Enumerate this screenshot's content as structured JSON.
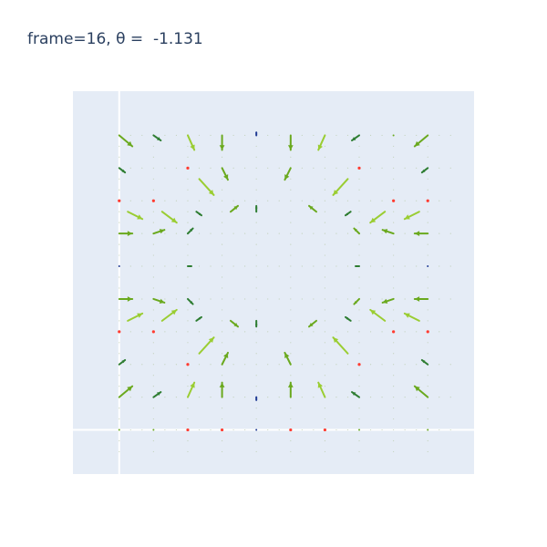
{
  "title": {
    "frame_label": "frame=16, θ =  -1.131"
  },
  "colors": {
    "plot_bg": "#e5ecf6",
    "grid": "#ffffff",
    "title_text": "#2a3f5f",
    "arrow_light": "#9acd32",
    "arrow_mid": "#6aa91e",
    "arrow_dark": "#2e7d32",
    "dot_red": "#ff3b30",
    "dot_faint": "#b7c9a6"
  },
  "chart_data": {
    "type": "quiver",
    "title": "frame=16, θ =  -1.131",
    "frame": 16,
    "theta": -1.131,
    "xlabel": "",
    "ylabel": "",
    "xlim": [
      -0.15,
      1.15
    ],
    "ylim": [
      -0.15,
      1.15
    ],
    "grid": true,
    "zero_lines": true,
    "legend": "none",
    "grid_x": [
      0.0,
      0.1111,
      0.2222,
      0.3333,
      0.4444,
      0.5556,
      0.6667,
      0.7778,
      0.8889,
      1.0
    ],
    "grid_y": [
      0.0,
      0.1111,
      0.2222,
      0.3333,
      0.4444,
      0.5556,
      0.6667,
      0.7778,
      0.8889,
      1.0
    ],
    "arrows": [
      {
        "x": 0.0,
        "y": 1.0,
        "u": 0.9,
        "v": -0.75,
        "s": "mid"
      },
      {
        "x": 0.1111,
        "y": 1.0,
        "u": 0.5,
        "v": -0.35,
        "s": "dark"
      },
      {
        "x": 0.2222,
        "y": 1.0,
        "u": 0.45,
        "v": -1.0,
        "s": "light"
      },
      {
        "x": 0.3333,
        "y": 1.0,
        "u": 0.0,
        "v": -1.0,
        "s": "mid"
      },
      {
        "x": 0.4444,
        "y": 1.0,
        "u": 0.0,
        "v": 0.2,
        "s": "navy"
      },
      {
        "x": 0.5556,
        "y": 1.0,
        "u": 0.0,
        "v": -1.0,
        "s": "mid"
      },
      {
        "x": 0.6667,
        "y": 1.0,
        "u": -0.45,
        "v": -1.0,
        "s": "light"
      },
      {
        "x": 0.7778,
        "y": 1.0,
        "u": -0.5,
        "v": -0.35,
        "s": "dark"
      },
      {
        "x": 0.8889,
        "y": 1.0,
        "u": 0.0,
        "v": 0.0,
        "s": "dot"
      },
      {
        "x": 1.0,
        "y": 1.0,
        "u": -0.9,
        "v": -0.75,
        "s": "mid"
      },
      {
        "x": 0.0,
        "y": 0.8889,
        "u": 0.4,
        "v": -0.3,
        "s": "dark"
      },
      {
        "x": 0.2222,
        "y": 0.8889,
        "u": 0.0,
        "v": 0.0,
        "s": "red"
      },
      {
        "x": 0.2593,
        "y": 0.8519,
        "u": 1.0,
        "v": -1.1,
        "s": "light"
      },
      {
        "x": 0.3333,
        "y": 0.8889,
        "u": 0.4,
        "v": -0.8,
        "s": "mid"
      },
      {
        "x": 0.5556,
        "y": 0.8889,
        "u": -0.4,
        "v": -0.8,
        "s": "mid"
      },
      {
        "x": 0.7407,
        "y": 0.8519,
        "u": -1.0,
        "v": -1.1,
        "s": "light"
      },
      {
        "x": 0.7778,
        "y": 0.8889,
        "u": 0.0,
        "v": 0.0,
        "s": "red"
      },
      {
        "x": 1.0,
        "y": 0.8889,
        "u": -0.4,
        "v": -0.3,
        "s": "dark"
      },
      {
        "x": 0.0,
        "y": 0.7778,
        "u": 0.0,
        "v": 0.0,
        "s": "red"
      },
      {
        "x": 0.1111,
        "y": 0.7778,
        "u": 0.0,
        "v": 0.0,
        "s": "red"
      },
      {
        "x": 0.0278,
        "y": 0.7407,
        "u": 1.0,
        "v": -0.5,
        "s": "light"
      },
      {
        "x": 0.1389,
        "y": 0.7407,
        "u": 1.0,
        "v": -0.75,
        "s": "light"
      },
      {
        "x": 0.25,
        "y": 0.7407,
        "u": 0.35,
        "v": -0.25,
        "s": "dark"
      },
      {
        "x": 0.3611,
        "y": 0.7407,
        "u": 0.5,
        "v": 0.4,
        "s": "mid"
      },
      {
        "x": 0.4444,
        "y": 0.7407,
        "u": 0.0,
        "v": 0.4,
        "s": "dark"
      },
      {
        "x": 0.6389,
        "y": 0.7407,
        "u": -0.5,
        "v": 0.4,
        "s": "mid"
      },
      {
        "x": 0.75,
        "y": 0.7407,
        "u": -0.35,
        "v": -0.25,
        "s": "dark"
      },
      {
        "x": 0.8611,
        "y": 0.7407,
        "u": -1.0,
        "v": -0.75,
        "s": "light"
      },
      {
        "x": 0.9722,
        "y": 0.7407,
        "u": -1.0,
        "v": -0.5,
        "s": "light"
      },
      {
        "x": 0.8889,
        "y": 0.7778,
        "u": 0.0,
        "v": 0.0,
        "s": "red"
      },
      {
        "x": 1.0,
        "y": 0.7778,
        "u": 0.0,
        "v": 0.0,
        "s": "red"
      },
      {
        "x": 0.0,
        "y": 0.6667,
        "u": 0.9,
        "v": 0.0,
        "s": "mid"
      },
      {
        "x": 0.1111,
        "y": 0.6667,
        "u": 0.75,
        "v": 0.25,
        "s": "mid"
      },
      {
        "x": 0.2222,
        "y": 0.6667,
        "u": 0.35,
        "v": 0.35,
        "s": "dark"
      },
      {
        "x": 0.7778,
        "y": 0.6667,
        "u": -0.35,
        "v": 0.35,
        "s": "mid"
      },
      {
        "x": 0.8889,
        "y": 0.6667,
        "u": -0.75,
        "v": 0.25,
        "s": "mid"
      },
      {
        "x": 1.0,
        "y": 0.6667,
        "u": -0.9,
        "v": 0.0,
        "s": "mid"
      },
      {
        "x": 0.0,
        "y": 0.5556,
        "u": 0.0,
        "v": 0.0,
        "s": "navy"
      },
      {
        "x": 0.2222,
        "y": 0.5556,
        "u": 0.25,
        "v": 0.0,
        "s": "dark"
      },
      {
        "x": 0.7778,
        "y": 0.5556,
        "u": -0.25,
        "v": 0.0,
        "s": "dark"
      },
      {
        "x": 1.0,
        "y": 0.5556,
        "u": 0.0,
        "v": 0.0,
        "s": "navy"
      },
      {
        "x": 0.0,
        "y": 0.4444,
        "u": 0.9,
        "v": 0.0,
        "s": "mid"
      },
      {
        "x": 0.1111,
        "y": 0.4444,
        "u": 0.75,
        "v": -0.25,
        "s": "mid"
      },
      {
        "x": 0.2222,
        "y": 0.4444,
        "u": 0.35,
        "v": -0.35,
        "s": "dark"
      },
      {
        "x": 0.7778,
        "y": 0.4444,
        "u": -0.35,
        "v": -0.35,
        "s": "mid"
      },
      {
        "x": 0.8889,
        "y": 0.4444,
        "u": -0.75,
        "v": -0.25,
        "s": "mid"
      },
      {
        "x": 1.0,
        "y": 0.4444,
        "u": -0.9,
        "v": 0.0,
        "s": "mid"
      },
      {
        "x": 0.0,
        "y": 0.3333,
        "u": 0.0,
        "v": 0.0,
        "s": "red"
      },
      {
        "x": 0.1111,
        "y": 0.3333,
        "u": 0.0,
        "v": 0.0,
        "s": "red"
      },
      {
        "x": 0.0278,
        "y": 0.3704,
        "u": 1.0,
        "v": 0.5,
        "s": "light"
      },
      {
        "x": 0.1389,
        "y": 0.3704,
        "u": 1.0,
        "v": 0.75,
        "s": "light"
      },
      {
        "x": 0.25,
        "y": 0.3704,
        "u": 0.35,
        "v": 0.25,
        "s": "dark"
      },
      {
        "x": 0.3611,
        "y": 0.3704,
        "u": 0.5,
        "v": -0.4,
        "s": "mid"
      },
      {
        "x": 0.4444,
        "y": 0.3704,
        "u": 0.0,
        "v": -0.4,
        "s": "dark"
      },
      {
        "x": 0.6389,
        "y": 0.3704,
        "u": -0.5,
        "v": -0.4,
        "s": "mid"
      },
      {
        "x": 0.75,
        "y": 0.3704,
        "u": -0.35,
        "v": 0.25,
        "s": "dark"
      },
      {
        "x": 0.8611,
        "y": 0.3704,
        "u": -1.0,
        "v": 0.75,
        "s": "light"
      },
      {
        "x": 0.9722,
        "y": 0.3704,
        "u": -1.0,
        "v": 0.5,
        "s": "light"
      },
      {
        "x": 0.8889,
        "y": 0.3333,
        "u": 0.0,
        "v": 0.0,
        "s": "red"
      },
      {
        "x": 1.0,
        "y": 0.3333,
        "u": 0.0,
        "v": 0.0,
        "s": "red"
      },
      {
        "x": 0.0,
        "y": 0.2222,
        "u": 0.4,
        "v": 0.3,
        "s": "dark"
      },
      {
        "x": 0.2222,
        "y": 0.2222,
        "u": 0.0,
        "v": 0.0,
        "s": "red"
      },
      {
        "x": 0.2593,
        "y": 0.2593,
        "u": 1.0,
        "v": 1.1,
        "s": "light"
      },
      {
        "x": 0.3333,
        "y": 0.2222,
        "u": 0.4,
        "v": 0.8,
        "s": "mid"
      },
      {
        "x": 0.5556,
        "y": 0.2222,
        "u": -0.4,
        "v": 0.8,
        "s": "mid"
      },
      {
        "x": 0.7407,
        "y": 0.2593,
        "u": -1.0,
        "v": 1.1,
        "s": "light"
      },
      {
        "x": 0.7778,
        "y": 0.2222,
        "u": 0.0,
        "v": 0.0,
        "s": "red"
      },
      {
        "x": 1.0,
        "y": 0.2222,
        "u": -0.4,
        "v": 0.3,
        "s": "dark"
      },
      {
        "x": 0.0,
        "y": 0.1111,
        "u": 0.9,
        "v": 0.75,
        "s": "mid"
      },
      {
        "x": 0.1111,
        "y": 0.1111,
        "u": 0.5,
        "v": 0.35,
        "s": "dark"
      },
      {
        "x": 0.2222,
        "y": 0.1111,
        "u": 0.45,
        "v": 1.0,
        "s": "light"
      },
      {
        "x": 0.3333,
        "y": 0.1111,
        "u": 0.0,
        "v": 1.0,
        "s": "mid"
      },
      {
        "x": 0.4444,
        "y": 0.1111,
        "u": 0.0,
        "v": -0.2,
        "s": "navy"
      },
      {
        "x": 0.5556,
        "y": 0.1111,
        "u": 0.0,
        "v": 1.0,
        "s": "mid"
      },
      {
        "x": 0.6667,
        "y": 0.1111,
        "u": -0.45,
        "v": 1.0,
        "s": "light"
      },
      {
        "x": 0.7778,
        "y": 0.1111,
        "u": -0.5,
        "v": 0.35,
        "s": "dark"
      },
      {
        "x": 1.0,
        "y": 0.1111,
        "u": -0.9,
        "v": 0.75,
        "s": "mid"
      },
      {
        "x": 0.0,
        "y": 0.0,
        "u": 0.0,
        "v": 0.0,
        "s": "dot"
      },
      {
        "x": 0.1111,
        "y": 0.0,
        "u": 0.0,
        "v": 0.0,
        "s": "dot"
      },
      {
        "x": 0.2222,
        "y": 0.0,
        "u": 0.0,
        "v": 0.0,
        "s": "red"
      },
      {
        "x": 0.3333,
        "y": 0.0,
        "u": 0.0,
        "v": 0.0,
        "s": "red"
      },
      {
        "x": 0.4444,
        "y": 0.0,
        "u": 0.0,
        "v": 0.0,
        "s": "navy"
      },
      {
        "x": 0.5556,
        "y": 0.0,
        "u": 0.0,
        "v": 0.0,
        "s": "red"
      },
      {
        "x": 0.6667,
        "y": 0.0,
        "u": 0.0,
        "v": 0.0,
        "s": "red"
      },
      {
        "x": 0.7778,
        "y": 0.0,
        "u": 0.0,
        "v": 0.0,
        "s": "dot"
      },
      {
        "x": 1.0,
        "y": 0.0,
        "u": 0.0,
        "v": 0.0,
        "s": "dot"
      }
    ]
  }
}
